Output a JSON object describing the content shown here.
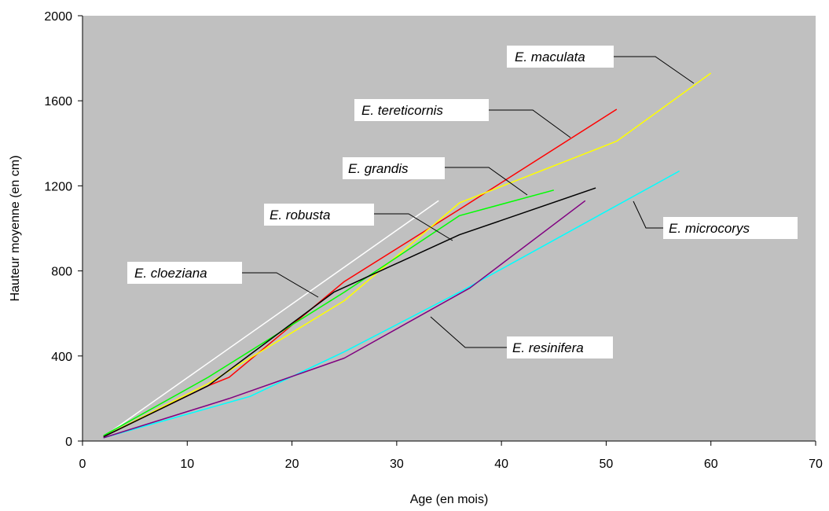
{
  "chart_data": {
    "type": "line",
    "title": "",
    "xlabel": "Age (en mois)",
    "ylabel": "Hauteur moyenne (en cm)",
    "xlim": [
      0,
      70
    ],
    "ylim": [
      0,
      2000
    ],
    "xticks": [
      0,
      10,
      20,
      30,
      40,
      50,
      60,
      70
    ],
    "yticks": [
      0,
      400,
      800,
      1200,
      1600,
      2000
    ],
    "xtick_labels": [
      "0",
      "10",
      "20",
      "30",
      "40",
      "50",
      "60",
      "70"
    ],
    "ytick_labels": [
      "0",
      "400",
      "800",
      "1200",
      "1600",
      "2000"
    ],
    "grid": false,
    "plot_background": "#c0c0c0",
    "series": [
      {
        "name": "E. cloeziana",
        "label": "E. cloeziana",
        "color": "#ffffff",
        "x": [
          2,
          34
        ],
        "y": [
          20,
          1130
        ]
      },
      {
        "name": "E. tereticornis",
        "label": "E. tereticornis",
        "color": "#ff0000",
        "x": [
          2,
          12,
          14,
          25,
          36,
          51
        ],
        "y": [
          20,
          260,
          300,
          750,
          1090,
          1560
        ]
      },
      {
        "name": "E. maculata",
        "label": "E. maculata",
        "color": "#ffff00",
        "x": [
          2,
          12,
          25,
          36,
          51,
          60
        ],
        "y": [
          20,
          270,
          660,
          1120,
          1410,
          1730
        ]
      },
      {
        "name": "E. grandis",
        "label": "E. grandis",
        "color": "#00ff00",
        "x": [
          2,
          12,
          25,
          36,
          45
        ],
        "y": [
          25,
          300,
          700,
          1060,
          1180
        ]
      },
      {
        "name": "E. robusta",
        "label": "E. robusta",
        "color": "#000000",
        "x": [
          2,
          12,
          24,
          36,
          49
        ],
        "y": [
          20,
          260,
          700,
          970,
          1190
        ]
      },
      {
        "name": "E. microcorys",
        "label": "E. microcorys",
        "color": "#00ffff",
        "x": [
          2,
          16,
          25,
          36,
          57
        ],
        "y": [
          15,
          210,
          420,
          700,
          1270
        ]
      },
      {
        "name": "E. resinifera",
        "label": "E. resinifera",
        "color": "#800080",
        "x": [
          2,
          14,
          25,
          37,
          48
        ],
        "y": [
          15,
          200,
          390,
          720,
          1130
        ]
      }
    ],
    "callouts": [
      {
        "label": "E. cloeziana"
      },
      {
        "label": "E.  robusta"
      },
      {
        "label": "E.  grandis"
      },
      {
        "label": "E. tereticornis"
      },
      {
        "label": "E. maculata"
      },
      {
        "label": "E.  microcorys"
      },
      {
        "label": "E. resinifera"
      }
    ]
  }
}
